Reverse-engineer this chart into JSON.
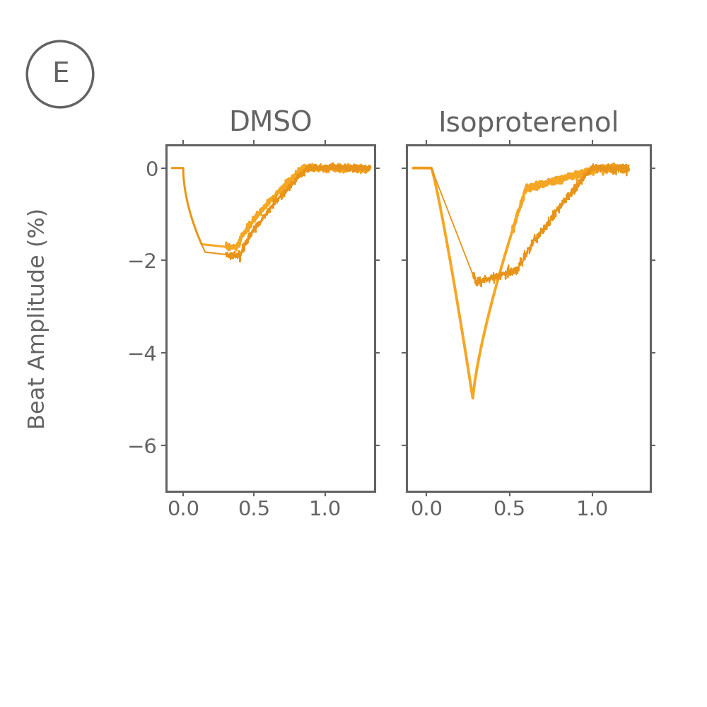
{
  "title_label": "E",
  "subplot_titles": [
    "DMSO",
    "Isoproterenol"
  ],
  "ylabel": "Beat Amplitude (%)",
  "ylim": [
    -7,
    0.5
  ],
  "xlim": [
    -0.12,
    1.35
  ],
  "yticks": [
    0,
    -2,
    -4,
    -6
  ],
  "xticks": [
    0,
    0.5,
    1
  ],
  "line_color": "#F5A623",
  "line_color2": "#E8941A",
  "background_color": "#ffffff",
  "spine_color": "#636363",
  "label_color": "#636363",
  "title_fontsize": 28,
  "label_fontsize": 23,
  "tick_fontsize": 21,
  "panel_label_fontsize": 28
}
